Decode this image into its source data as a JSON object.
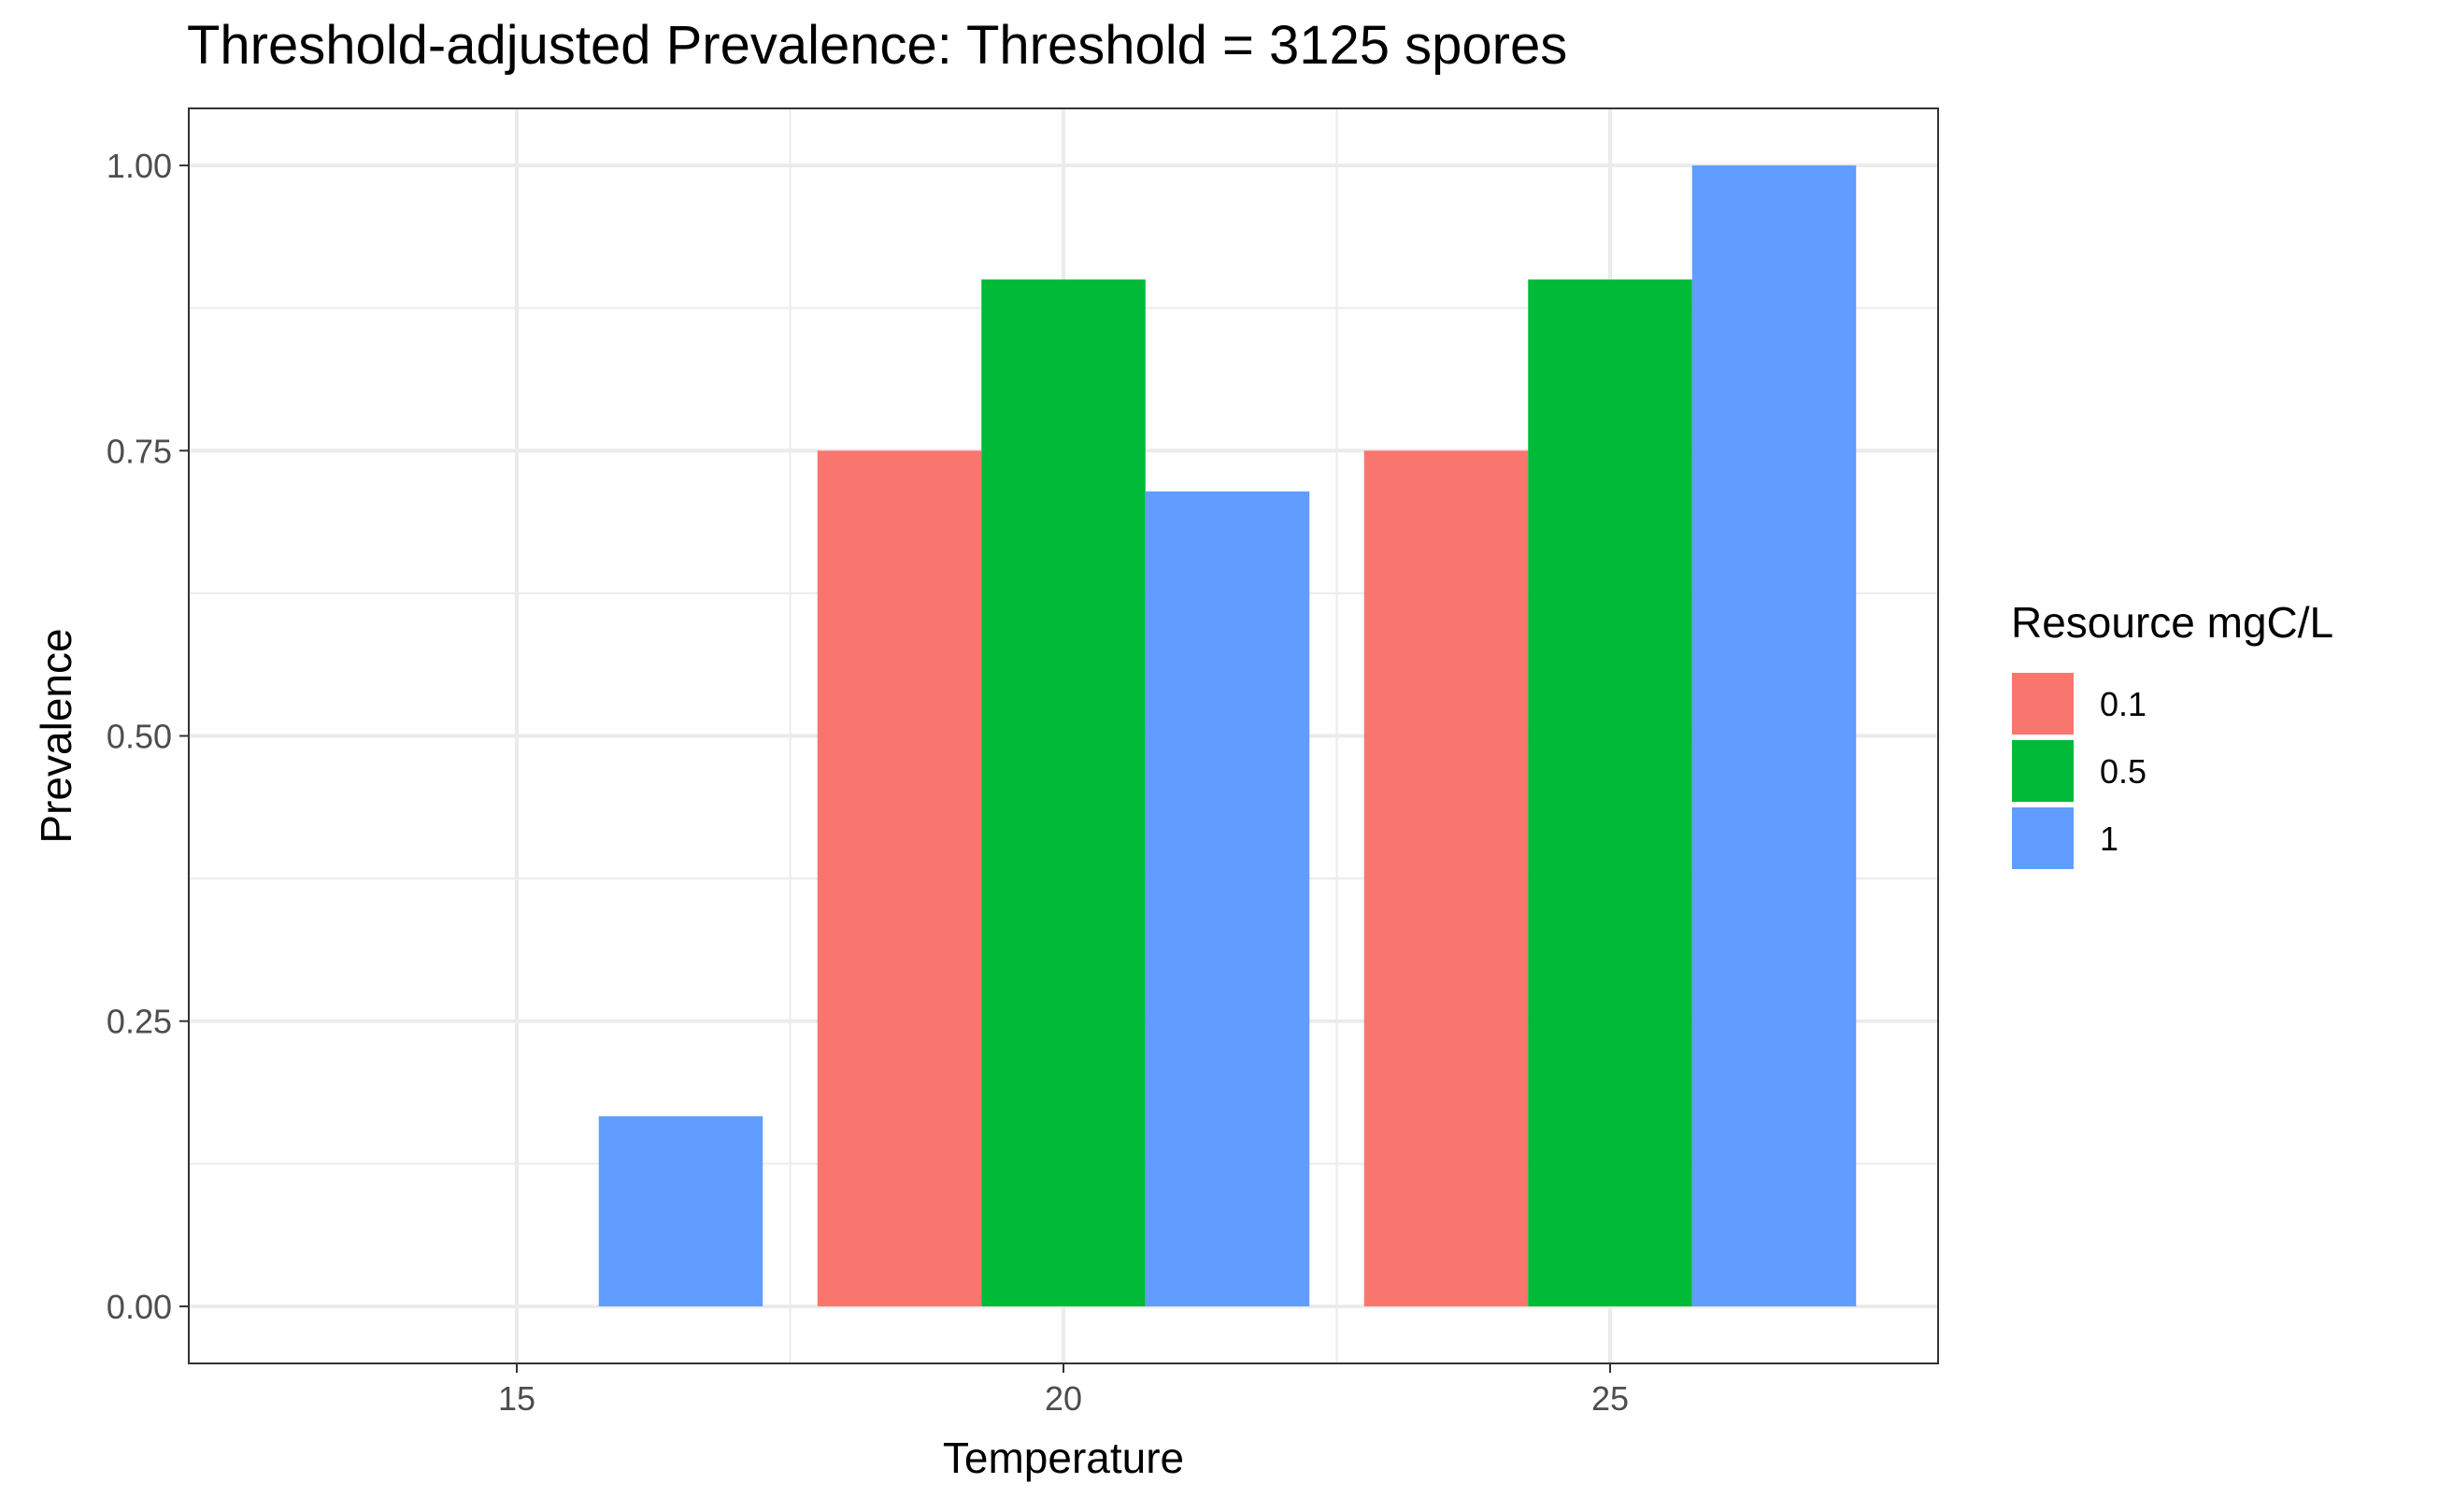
{
  "chart_data": {
    "type": "bar",
    "title": "Threshold-adjusted Prevalence: Threshold = 3125 spores",
    "xlabel": "Temperature",
    "ylabel": "Prevalence",
    "x_ticks": [
      15,
      20,
      25
    ],
    "x_tick_labels": [
      "15",
      "20",
      "25"
    ],
    "y_ticks": [
      0,
      0.25,
      0.5,
      0.75,
      1.0
    ],
    "y_tick_labels": [
      "0.00",
      "0.25",
      "0.50",
      "0.75",
      "1.00"
    ],
    "xlim": [
      12.0,
      28.0
    ],
    "ylim": [
      -0.05,
      1.05
    ],
    "grid": true,
    "legend": {
      "title": "Resource mgC/L",
      "position": "right"
    },
    "dodge_width": 4.5,
    "series": [
      {
        "name": "0.1",
        "color": "#F8766D",
        "x": [
          15,
          20,
          25
        ],
        "values": [
          0,
          0.75,
          0.75
        ]
      },
      {
        "name": "0.5",
        "color": "#00BA38",
        "x": [
          15,
          20,
          25
        ],
        "values": [
          0,
          0.9,
          0.9
        ]
      },
      {
        "name": "1",
        "color": "#619CFF",
        "x": [
          15,
          20,
          25
        ],
        "values": [
          0.1667,
          0.7143,
          1.0
        ]
      }
    ]
  }
}
